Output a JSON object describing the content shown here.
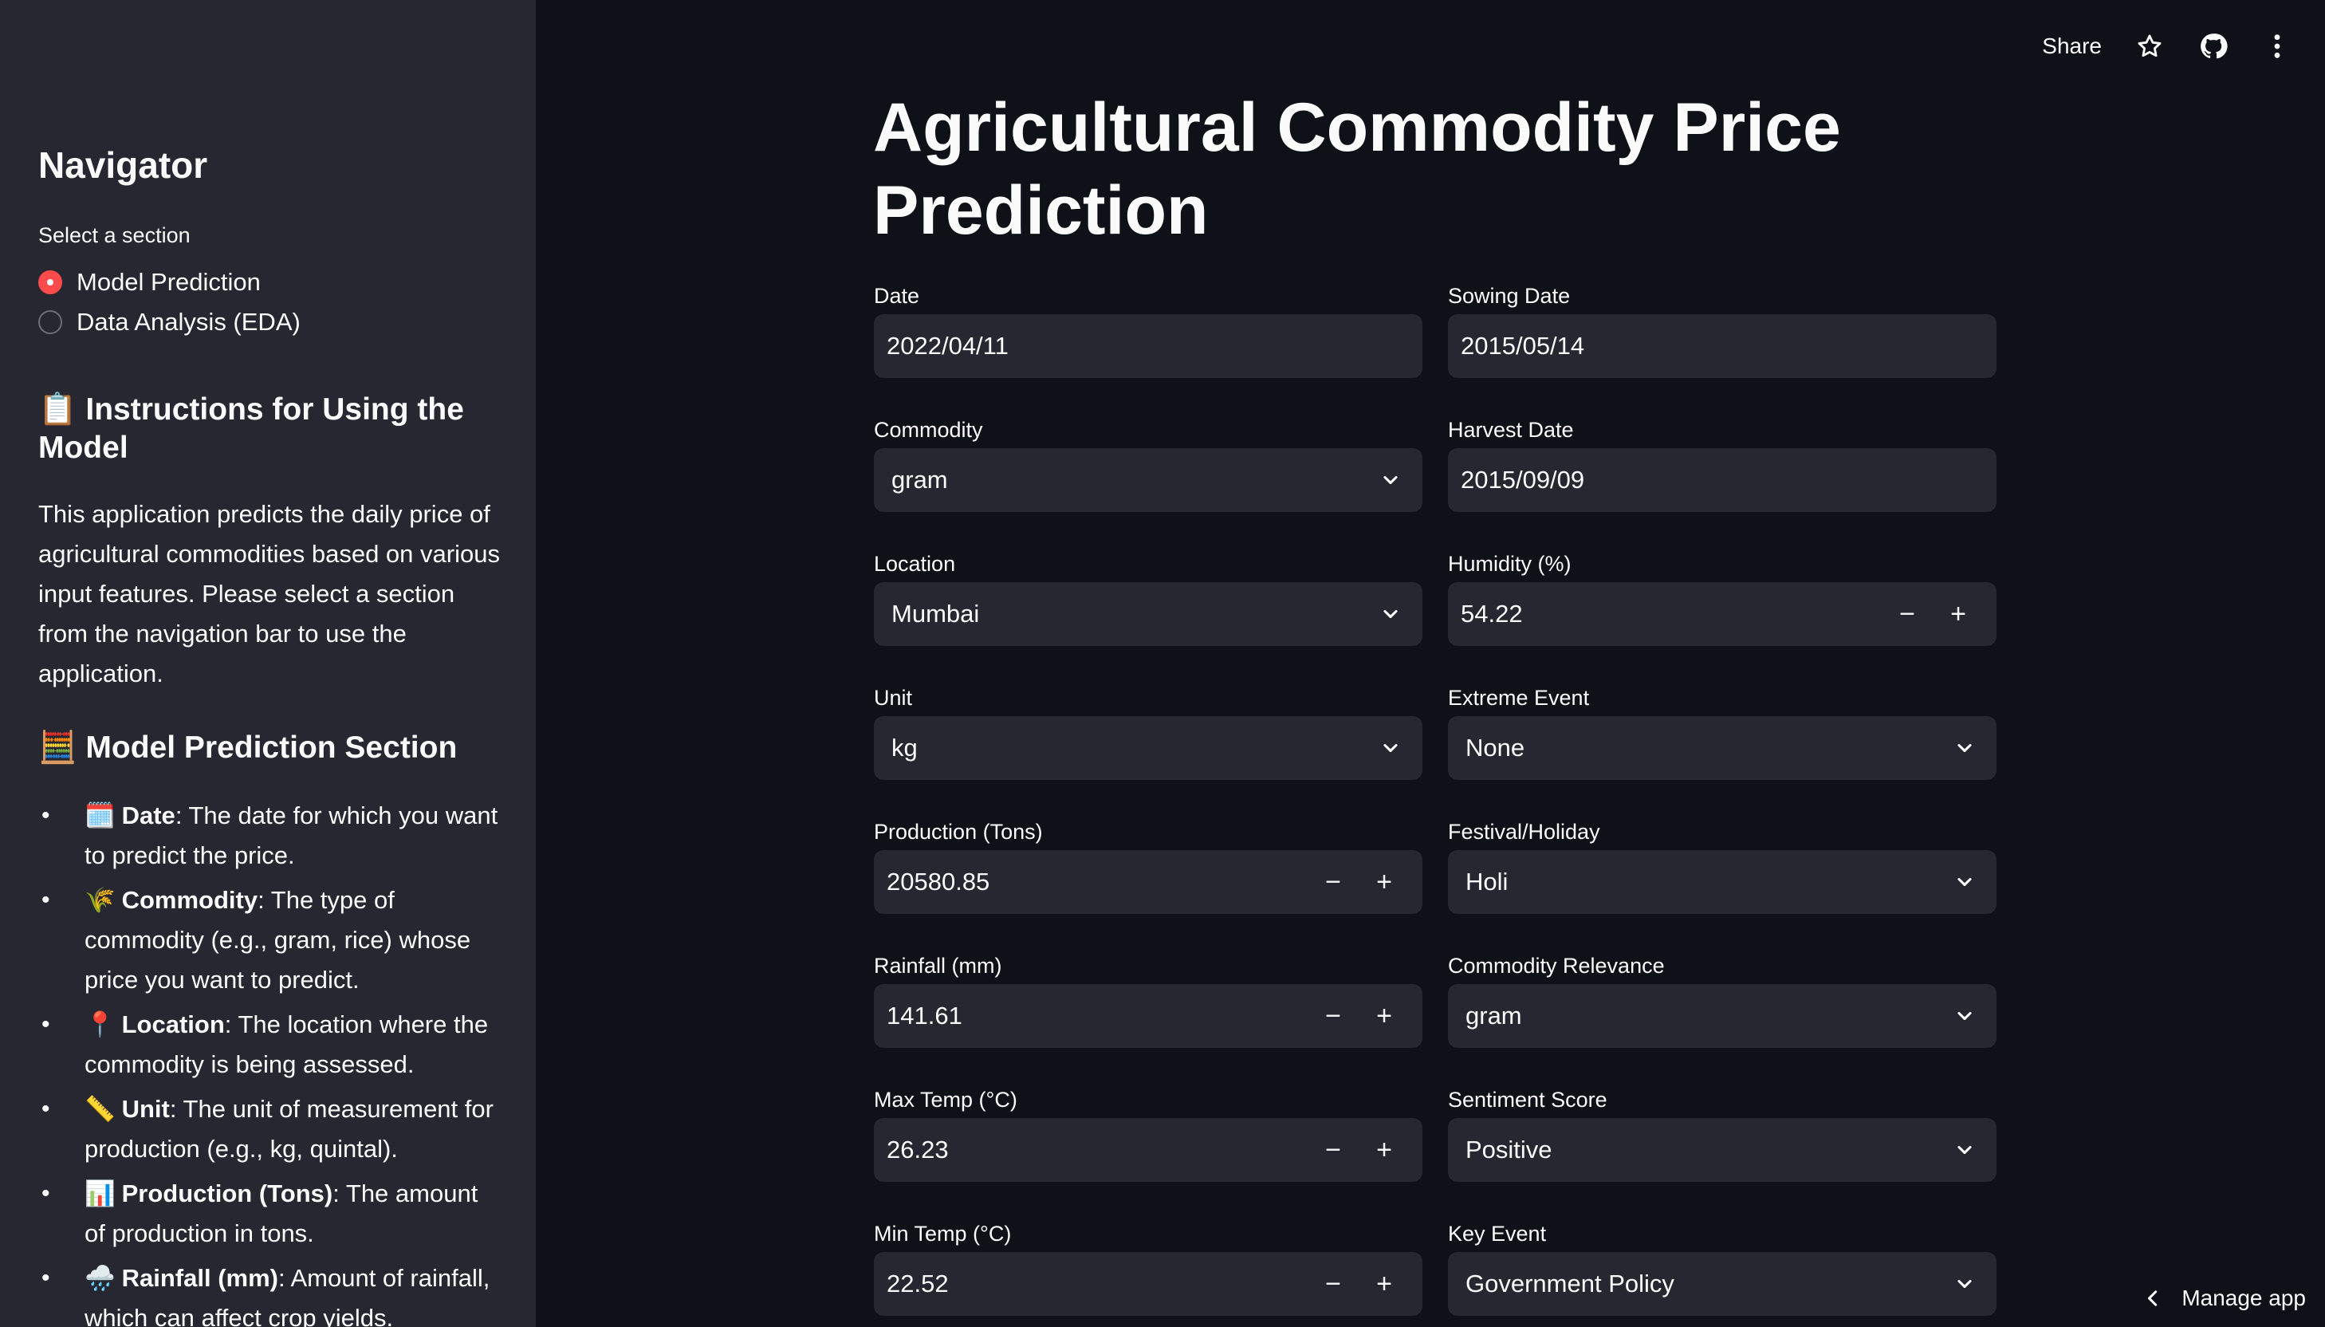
{
  "sidebar": {
    "title": "Navigator",
    "select_label": "Select a section",
    "options": [
      {
        "label": "Model Prediction",
        "checked": true
      },
      {
        "label": "Data Analysis (EDA)",
        "checked": false
      }
    ],
    "instructions_heading": "📋 Instructions for Using the Model",
    "instructions_text": "This application predicts the daily price of agricultural commodities based on various input features. Please select a section from the navigation bar to use the application.",
    "model_section_heading": "🧮 Model Prediction Section",
    "items": [
      {
        "emoji": "🗓️",
        "term": "Date",
        "desc": ": The date for which you want to predict the price."
      },
      {
        "emoji": "🌾",
        "term": "Commodity",
        "desc": ": The type of commodity (e.g., gram, rice) whose price you want to predict."
      },
      {
        "emoji": "📍",
        "term": "Location",
        "desc": ": The location where the commodity is being assessed."
      },
      {
        "emoji": "📏",
        "term": "Unit",
        "desc": ": The unit of measurement for production (e.g., kg, quintal)."
      },
      {
        "emoji": "📊",
        "term": "Production (Tons)",
        "desc": ": The amount of production in tons."
      },
      {
        "emoji": "🌧️",
        "term": "Rainfall (mm)",
        "desc": ": Amount of rainfall, which can affect crop yields."
      }
    ]
  },
  "toolbar": {
    "share_label": "Share",
    "icons": [
      "star-icon",
      "github-icon",
      "more-vertical-icon"
    ]
  },
  "main": {
    "title": "Agricultural Commodity Price Prediction",
    "left": {
      "date": {
        "label": "Date",
        "value": "2022/04/11"
      },
      "commodity": {
        "label": "Commodity",
        "value": "gram"
      },
      "location": {
        "label": "Location",
        "value": "Mumbai"
      },
      "unit": {
        "label": "Unit",
        "value": "kg"
      },
      "production": {
        "label": "Production (Tons)",
        "value": "20580.85"
      },
      "rainfall": {
        "label": "Rainfall (mm)",
        "value": "141.61"
      },
      "max_temp": {
        "label": "Max Temp (°C)",
        "value": "26.23"
      },
      "min_temp": {
        "label": "Min Temp (°C)",
        "value": "22.52"
      }
    },
    "right": {
      "sowing_date": {
        "label": "Sowing Date",
        "value": "2015/05/14"
      },
      "harvest_date": {
        "label": "Harvest Date",
        "value": "2015/09/09"
      },
      "humidity": {
        "label": "Humidity (%)",
        "value": "54.22"
      },
      "extreme_event": {
        "label": "Extreme Event",
        "value": "None"
      },
      "festival": {
        "label": "Festival/Holiday",
        "value": "Holi"
      },
      "commodity_relevance": {
        "label": "Commodity Relevance",
        "value": "gram"
      },
      "sentiment_score": {
        "label": "Sentiment Score",
        "value": "Positive"
      },
      "key_event": {
        "label": "Key Event",
        "value": "Government Policy"
      }
    },
    "stepper_minus": "−",
    "stepper_plus": "+"
  },
  "footer": {
    "manage_label": "Manage app"
  }
}
